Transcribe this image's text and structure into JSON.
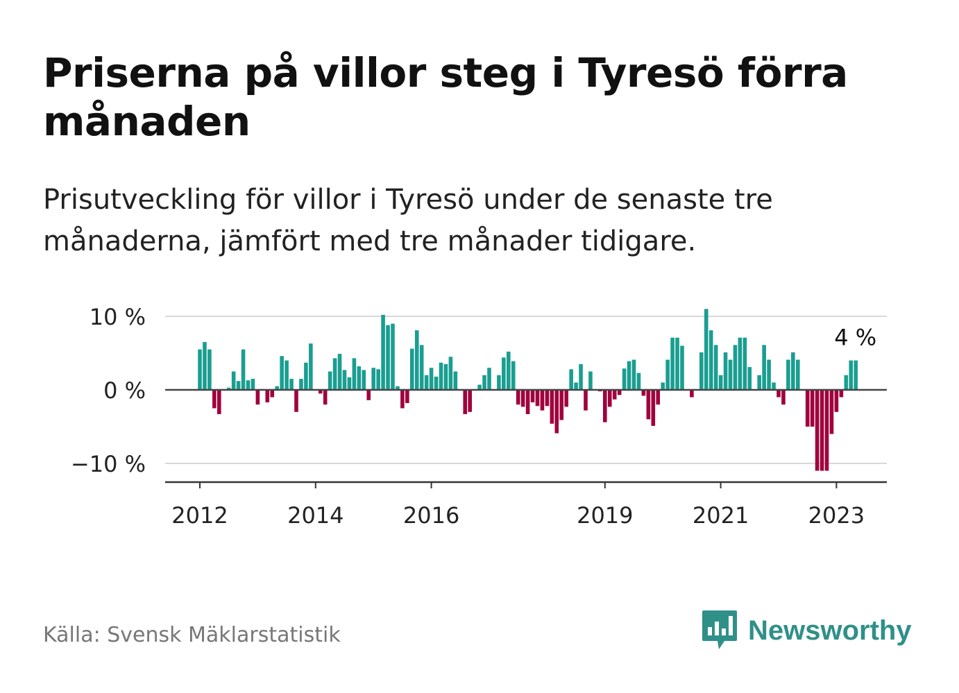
{
  "title": "Priserna på villor steg i Tyresö förra månaden",
  "subtitle": "Prisutveckling för villor i Tyresö under de senaste tre månaderna, jämfört med tre månader tidigare.",
  "source": "Källa: Svensk Mäklarstatistik",
  "brand": {
    "name": "Newsworthy",
    "color": "#2f9088"
  },
  "colors": {
    "positive": "#1a9e91",
    "negative": "#a0003d",
    "grid": "#d9d9d9",
    "axis": "#333333"
  },
  "chart_data": {
    "type": "bar",
    "title": "Priserna på villor steg i Tyresö förra månaden",
    "ylabel": "",
    "xlabel": "",
    "ylim": [
      -12.5,
      10.5
    ],
    "y_ticks": [
      {
        "value": 10,
        "label": "10 %"
      },
      {
        "value": 0,
        "label": "0 %"
      },
      {
        "value": -10,
        "label": "−10 %"
      }
    ],
    "x_ticks": [
      {
        "index": 0,
        "label": "2012"
      },
      {
        "index": 24,
        "label": "2014"
      },
      {
        "index": 48,
        "label": "2016"
      },
      {
        "index": 84,
        "label": "2019"
      },
      {
        "index": 108,
        "label": "2021"
      },
      {
        "index": 132,
        "label": "2023"
      }
    ],
    "start": "2012-01",
    "values": [
      5.5,
      6.5,
      5.5,
      -2.5,
      -3.3,
      0,
      0.3,
      2.5,
      1.2,
      5.5,
      1.3,
      1.5,
      -2,
      0,
      -1.7,
      -1,
      0.5,
      4.6,
      4,
      1.5,
      -3,
      1.5,
      3.7,
      6.3,
      0,
      -0.5,
      -2,
      2.5,
      4.3,
      4.9,
      2.7,
      1.7,
      4.3,
      3.2,
      2.7,
      -1.4,
      3,
      2.8,
      10.2,
      8.8,
      9,
      0.5,
      -2.5,
      -1.8,
      5.6,
      8.1,
      6.1,
      2,
      3,
      1.8,
      3.7,
      3.5,
      4.5,
      2.5,
      0,
      -3.3,
      -3,
      0,
      0.7,
      2,
      3,
      0,
      2,
      4.4,
      5.2,
      3.9,
      -2,
      -2.3,
      -3.3,
      -1.7,
      -2.2,
      -2.8,
      -2.2,
      -4.6,
      -5.9,
      -4.1,
      -2.3,
      2.8,
      1,
      3.5,
      -2.8,
      2.5,
      0,
      -0.2,
      -4.4,
      -2.3,
      -1.3,
      -0.7,
      2.9,
      3.9,
      4.1,
      2.3,
      -0.8,
      -4,
      -4.9,
      -2,
      1,
      4.1,
      7.1,
      7.1,
      6,
      0,
      -1,
      0,
      5.1,
      11,
      8.1,
      6.1,
      2,
      5.1,
      4.1,
      6.1,
      7.1,
      7.1,
      3.1,
      0,
      2,
      6.1,
      4.1,
      1,
      -1,
      -2,
      4.1,
      5.1,
      4.1,
      0,
      -5,
      -5,
      -11,
      -11,
      -11,
      -6,
      -3,
      -1,
      2,
      4,
      4
    ],
    "last_value_label": "4 %"
  }
}
